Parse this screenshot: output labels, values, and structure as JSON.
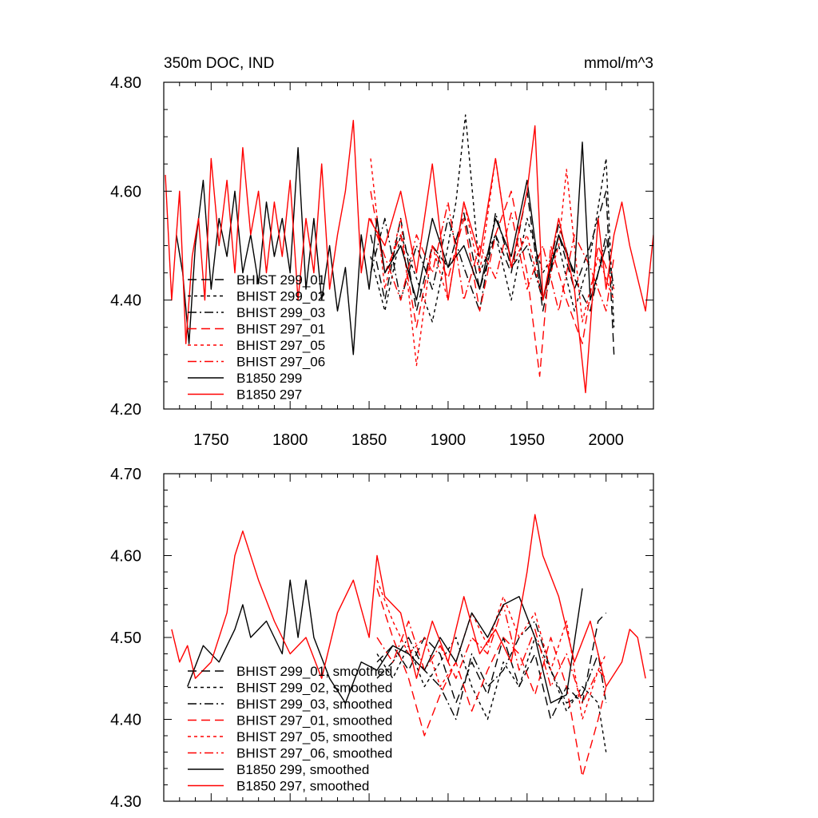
{
  "chart_data": [
    {
      "type": "line",
      "title_left": "350m DOC, IND",
      "title_right": "mmol/m^3",
      "xlim": [
        1720,
        2030
      ],
      "ylim": [
        4.2,
        4.8
      ],
      "x_ticks": [
        1750,
        1800,
        1850,
        1900,
        1950,
        2000
      ],
      "x_tick_labels": [
        "1750",
        "1800",
        "1850",
        "1900",
        "1950",
        "2000"
      ],
      "y_ticks": [
        4.2,
        4.4,
        4.6,
        4.8
      ],
      "y_tick_labels": [
        "4.20",
        "4.40",
        "4.60",
        "4.80"
      ],
      "series": [
        {
          "name": "BHIST 299_01",
          "label": "BHIST 299_01",
          "color": "#000000",
          "dash": "long",
          "x": [
            1851,
            1860,
            1870,
            1880,
            1890,
            1900,
            1910,
            1920,
            1930,
            1940,
            1950,
            1960,
            1970,
            1980,
            1990,
            2000,
            2005
          ],
          "y": [
            4.52,
            4.4,
            4.55,
            4.38,
            4.5,
            4.46,
            4.56,
            4.42,
            4.52,
            4.45,
            4.6,
            4.38,
            4.52,
            4.42,
            4.5,
            4.6,
            4.3
          ]
        },
        {
          "name": "BHIST 299_02",
          "label": "BHIST 299_02",
          "color": "#000000",
          "dash": "short",
          "x": [
            1851,
            1860,
            1870,
            1880,
            1890,
            1900,
            1905,
            1911,
            1920,
            1930,
            1940,
            1950,
            1960,
            1970,
            1980,
            1990,
            2000,
            2005
          ],
          "y": [
            4.48,
            4.38,
            4.52,
            4.44,
            4.36,
            4.5,
            4.58,
            4.74,
            4.45,
            4.52,
            4.4,
            4.55,
            4.45,
            4.5,
            4.38,
            4.48,
            4.66,
            4.35
          ]
        },
        {
          "name": "BHIST 299_03",
          "label": "BHIST 299_03",
          "color": "#000000",
          "dash": "dashdot",
          "x": [
            1851,
            1860,
            1870,
            1880,
            1890,
            1900,
            1910,
            1920,
            1930,
            1940,
            1950,
            1960,
            1970,
            1980,
            1990,
            2000,
            2005
          ],
          "y": [
            4.45,
            4.55,
            4.4,
            4.5,
            4.42,
            4.55,
            4.46,
            4.38,
            4.56,
            4.46,
            4.5,
            4.4,
            4.54,
            4.44,
            4.38,
            4.52,
            4.42
          ]
        },
        {
          "name": "BHIST 297_01",
          "label": "BHIST 297_01",
          "color": "#ff0000",
          "dash": "long",
          "x": [
            1851,
            1860,
            1870,
            1880,
            1890,
            1900,
            1910,
            1920,
            1930,
            1940,
            1950,
            1958,
            1965,
            1975,
            1985,
            1995,
            2005
          ],
          "y": [
            4.6,
            4.45,
            4.52,
            4.35,
            4.5,
            4.44,
            4.55,
            4.38,
            4.52,
            4.6,
            4.45,
            4.26,
            4.5,
            4.4,
            4.32,
            4.5,
            4.42
          ]
        },
        {
          "name": "BHIST 297_05",
          "label": "BHIST 297_05",
          "color": "#ff0000",
          "dash": "short",
          "x": [
            1851,
            1860,
            1870,
            1880,
            1890,
            1900,
            1910,
            1920,
            1930,
            1940,
            1950,
            1960,
            1970,
            1975,
            1985,
            1995,
            2005
          ],
          "y": [
            4.66,
            4.42,
            4.55,
            4.28,
            4.5,
            4.4,
            4.58,
            4.45,
            4.66,
            4.46,
            4.52,
            4.4,
            4.5,
            4.64,
            4.36,
            4.48,
            4.4
          ]
        },
        {
          "name": "BHIST 297_06",
          "label": "BHIST 297_06",
          "color": "#ff0000",
          "dash": "dashdot",
          "x": [
            1851,
            1860,
            1870,
            1880,
            1890,
            1900,
            1910,
            1920,
            1930,
            1940,
            1950,
            1960,
            1970,
            1980,
            1990,
            2000,
            2005
          ],
          "y": [
            4.55,
            4.48,
            4.4,
            4.52,
            4.45,
            4.58,
            4.4,
            4.5,
            4.44,
            4.56,
            4.42,
            4.5,
            4.38,
            4.52,
            4.46,
            4.38,
            4.48
          ]
        },
        {
          "name": "B1850 299",
          "label": "B1850 299",
          "color": "#000000",
          "dash": "solid",
          "x": [
            1728,
            1732,
            1736,
            1740,
            1745,
            1750,
            1755,
            1760,
            1765,
            1770,
            1775,
            1780,
            1785,
            1790,
            1795,
            1800,
            1805,
            1810,
            1815,
            1820,
            1825,
            1830,
            1835,
            1840,
            1845,
            1850,
            1855,
            1860,
            1870,
            1880,
            1890,
            1900,
            1910,
            1920,
            1930,
            1940,
            1950,
            1960,
            1970,
            1980,
            1985,
            1990,
            2000
          ],
          "y": [
            4.52,
            4.45,
            4.32,
            4.5,
            4.62,
            4.42,
            4.55,
            4.48,
            4.6,
            4.45,
            4.52,
            4.43,
            4.58,
            4.48,
            4.55,
            4.45,
            4.68,
            4.42,
            4.55,
            4.4,
            4.5,
            4.38,
            4.46,
            4.3,
            4.52,
            4.42,
            4.55,
            4.45,
            4.5,
            4.4,
            4.55,
            4.46,
            4.5,
            4.42,
            4.55,
            4.48,
            4.62,
            4.4,
            4.52,
            4.45,
            4.69,
            4.4,
            4.5
          ]
        },
        {
          "name": "B1850 297",
          "label": "B1850 297",
          "color": "#ff0000",
          "dash": "solid",
          "x": [
            1721,
            1725,
            1730,
            1734,
            1738,
            1742,
            1746,
            1750,
            1755,
            1760,
            1765,
            1770,
            1775,
            1780,
            1785,
            1790,
            1795,
            1800,
            1805,
            1810,
            1815,
            1820,
            1825,
            1830,
            1835,
            1840,
            1845,
            1850,
            1860,
            1870,
            1880,
            1890,
            1900,
            1910,
            1920,
            1930,
            1940,
            1950,
            1955,
            1960,
            1970,
            1980,
            1987,
            1995,
            2000,
            2005,
            2010,
            2015,
            2020,
            2025,
            2030
          ],
          "y": [
            4.63,
            4.4,
            4.6,
            4.32,
            4.48,
            4.55,
            4.4,
            4.66,
            4.5,
            4.62,
            4.45,
            4.68,
            4.52,
            4.6,
            4.45,
            4.58,
            4.48,
            4.62,
            4.4,
            4.55,
            4.45,
            4.65,
            4.42,
            4.52,
            4.6,
            4.73,
            4.45,
            4.55,
            4.5,
            4.6,
            4.45,
            4.65,
            4.4,
            4.58,
            4.48,
            4.66,
            4.46,
            4.6,
            4.72,
            4.4,
            4.55,
            4.42,
            4.23,
            4.55,
            4.42,
            4.52,
            4.58,
            4.5,
            4.44,
            4.38,
            4.52
          ]
        }
      ]
    },
    {
      "type": "line",
      "xlim": [
        1720,
        2030
      ],
      "ylim": [
        4.3,
        4.7
      ],
      "x_ticks": [
        1750,
        1800,
        1850,
        1900,
        1950,
        2000
      ],
      "y_ticks": [
        4.3,
        4.4,
        4.5,
        4.6,
        4.7
      ],
      "y_tick_labels": [
        "4.30",
        "4.40",
        "4.50",
        "4.60",
        "4.70"
      ],
      "series": [
        {
          "name": "BHIST 299_01, smoothed",
          "label": "BHIST 299_01, smoothed",
          "color": "#000000",
          "dash": "long",
          "x": [
            1855,
            1865,
            1875,
            1885,
            1895,
            1905,
            1915,
            1925,
            1935,
            1945,
            1955,
            1965,
            1975,
            1985,
            1995,
            2000
          ],
          "y": [
            4.47,
            4.49,
            4.46,
            4.5,
            4.48,
            4.42,
            4.47,
            4.43,
            4.5,
            4.44,
            4.48,
            4.4,
            4.44,
            4.42,
            4.52,
            4.53
          ]
        },
        {
          "name": "BHIST 299_02, smoothed",
          "label": "BHIST 299_02, smoothed",
          "color": "#000000",
          "dash": "short",
          "x": [
            1855,
            1865,
            1875,
            1885,
            1895,
            1905,
            1915,
            1925,
            1935,
            1945,
            1955,
            1965,
            1975,
            1985,
            1995,
            2000
          ],
          "y": [
            4.48,
            4.45,
            4.49,
            4.44,
            4.47,
            4.5,
            4.44,
            4.4,
            4.47,
            4.44,
            4.5,
            4.46,
            4.41,
            4.44,
            4.42,
            4.36
          ]
        },
        {
          "name": "BHIST 299_03, smoothed",
          "label": "BHIST 299_03, smoothed",
          "color": "#000000",
          "dash": "dashdot",
          "x": [
            1855,
            1865,
            1875,
            1885,
            1895,
            1905,
            1915,
            1925,
            1935,
            1945,
            1955,
            1965,
            1975,
            1985,
            1995,
            2000
          ],
          "y": [
            4.45,
            4.47,
            4.5,
            4.46,
            4.44,
            4.4,
            4.48,
            4.44,
            4.46,
            4.5,
            4.52,
            4.46,
            4.42,
            4.43,
            4.48,
            4.42
          ]
        },
        {
          "name": "BHIST 297_01, smoothed",
          "label": "BHIST 297_01, smoothed",
          "color": "#ff0000",
          "dash": "long",
          "x": [
            1855,
            1865,
            1875,
            1885,
            1895,
            1905,
            1915,
            1925,
            1935,
            1945,
            1955,
            1965,
            1975,
            1985,
            1995,
            2000
          ],
          "y": [
            4.56,
            4.5,
            4.45,
            4.38,
            4.43,
            4.47,
            4.41,
            4.46,
            4.5,
            4.48,
            4.43,
            4.5,
            4.44,
            4.33,
            4.4,
            4.44
          ]
        },
        {
          "name": "BHIST 297_05, smoothed",
          "label": "BHIST 297_05, smoothed",
          "color": "#ff0000",
          "dash": "short",
          "x": [
            1855,
            1865,
            1875,
            1885,
            1895,
            1905,
            1915,
            1925,
            1935,
            1945,
            1955,
            1965,
            1975,
            1985,
            1995,
            2000
          ],
          "y": [
            4.57,
            4.52,
            4.48,
            4.5,
            4.44,
            4.47,
            4.53,
            4.49,
            4.55,
            4.5,
            4.53,
            4.46,
            4.52,
            4.4,
            4.46,
            4.48
          ]
        },
        {
          "name": "BHIST 297_06, smoothed",
          "label": "BHIST 297_06, smoothed",
          "color": "#ff0000",
          "dash": "dashdot",
          "x": [
            1855,
            1865,
            1875,
            1885,
            1895,
            1905,
            1915,
            1925,
            1935,
            1945,
            1955,
            1965,
            1975,
            1985,
            1995,
            2000
          ],
          "y": [
            4.5,
            4.47,
            4.52,
            4.46,
            4.49,
            4.45,
            4.5,
            4.48,
            4.54,
            4.46,
            4.51,
            4.44,
            4.48,
            4.42,
            4.46,
            4.45
          ]
        },
        {
          "name": "B1850 299, smoothed",
          "label": "B1850 299, smoothed",
          "color": "#000000",
          "dash": "solid",
          "x": [
            1735,
            1745,
            1755,
            1765,
            1770,
            1775,
            1785,
            1795,
            1800,
            1805,
            1810,
            1815,
            1825,
            1835,
            1845,
            1855,
            1865,
            1875,
            1885,
            1895,
            1905,
            1915,
            1925,
            1935,
            1945,
            1955,
            1965,
            1975,
            1985
          ],
          "y": [
            4.44,
            4.49,
            4.47,
            4.51,
            4.54,
            4.5,
            4.52,
            4.48,
            4.57,
            4.5,
            4.57,
            4.5,
            4.45,
            4.42,
            4.47,
            4.46,
            4.49,
            4.48,
            4.46,
            4.5,
            4.47,
            4.53,
            4.5,
            4.54,
            4.55,
            4.5,
            4.42,
            4.43,
            4.56
          ]
        },
        {
          "name": "B1850 297, smoothed",
          "label": "B1850 297, smoothed",
          "color": "#ff0000",
          "dash": "solid",
          "x": [
            1725,
            1730,
            1735,
            1740,
            1750,
            1760,
            1765,
            1770,
            1780,
            1790,
            1800,
            1810,
            1820,
            1830,
            1840,
            1850,
            1855,
            1860,
            1870,
            1880,
            1890,
            1900,
            1910,
            1920,
            1930,
            1940,
            1950,
            1955,
            1960,
            1970,
            1980,
            1990,
            2000,
            2010,
            2015,
            2020,
            2025
          ],
          "y": [
            4.51,
            4.47,
            4.49,
            4.45,
            4.47,
            4.53,
            4.6,
            4.63,
            4.57,
            4.52,
            4.48,
            4.5,
            4.45,
            4.53,
            4.57,
            4.5,
            4.6,
            4.55,
            4.53,
            4.45,
            4.52,
            4.47,
            4.55,
            4.48,
            4.51,
            4.47,
            4.58,
            4.65,
            4.6,
            4.55,
            4.47,
            4.52,
            4.44,
            4.47,
            4.51,
            4.5,
            4.45
          ]
        }
      ]
    }
  ]
}
